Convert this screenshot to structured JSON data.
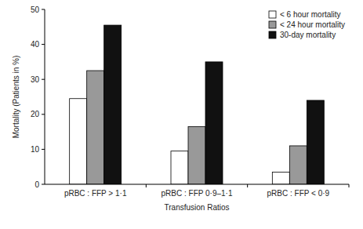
{
  "chart_data": {
    "type": "bar",
    "x_label": "Transfusion Ratios",
    "y_label": "Mortality (Patients in %)",
    "categories": [
      "pRBC : FFP > 1·1",
      "pRBC : FFP 0·9–1·1",
      "pRBC : FFP < 0·9"
    ],
    "series": [
      {
        "name": "< 6 hour mortality",
        "color": "#ffffff",
        "values": [
          24.5,
          9.5,
          3.5
        ]
      },
      {
        "name": "< 24 hour mortality",
        "color": "#999999",
        "values": [
          32.5,
          16.5,
          11
        ]
      },
      {
        "name": "30-day mortality",
        "color": "#111111",
        "values": [
          45.5,
          35,
          24
        ]
      }
    ],
    "ylim": [
      0,
      50
    ],
    "yticks": [
      0,
      10,
      20,
      30,
      40,
      50
    ],
    "grid": false,
    "legend": "top-right"
  }
}
